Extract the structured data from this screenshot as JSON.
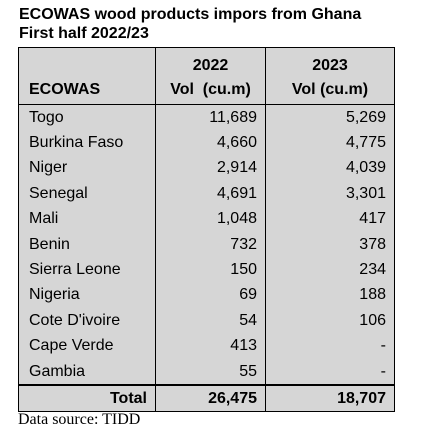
{
  "title": "ECOWAS wood products impors from Ghana",
  "subtitle": "First half 2022/23",
  "table": {
    "columns": [
      {
        "label": "ECOWAS"
      },
      {
        "year": "2022",
        "unit": "Vol  (cu.m)"
      },
      {
        "year": "2023",
        "unit": "Vol (cu.m)"
      }
    ],
    "rows": [
      [
        "Togo",
        "11,689",
        "5,269"
      ],
      [
        "Burkina Faso",
        "4,660",
        "4,775"
      ],
      [
        "Niger",
        "2,914",
        "4,039"
      ],
      [
        "Senegal",
        "4,691",
        "3,301"
      ],
      [
        "Mali",
        "1,048",
        "417"
      ],
      [
        "Benin",
        "732",
        "378"
      ],
      [
        "Sierra Leone",
        "150",
        "234"
      ],
      [
        "Nigeria",
        "69",
        "188"
      ],
      [
        "Cote D'ivoire",
        "54",
        "106"
      ],
      [
        "Cape Verde",
        "413",
        "-"
      ],
      [
        "Gambia",
        "55",
        "-"
      ]
    ],
    "total": [
      "Total",
      "26,475",
      "18,707"
    ]
  },
  "source": "Data source: TIDD"
}
